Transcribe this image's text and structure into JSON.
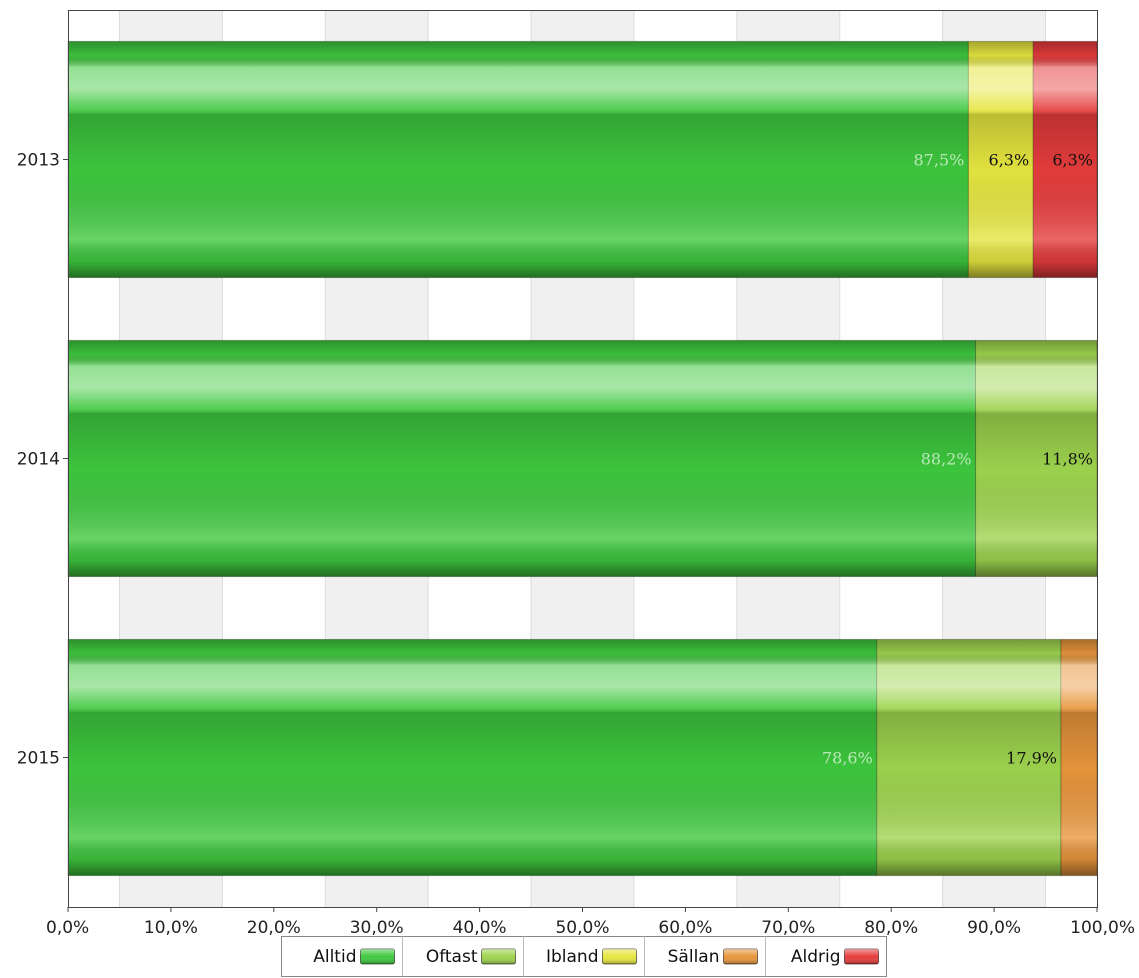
{
  "chart_data": {
    "type": "bar",
    "orientation": "horizontal",
    "stacked": true,
    "categories": [
      "2013",
      "2014",
      "2015"
    ],
    "series": [
      {
        "name": "Alltid",
        "values": [
          87.5,
          88.2,
          78.6
        ],
        "labels": [
          "87,5%",
          "88,2%",
          "78,6%"
        ],
        "color": "#3ec83e"
      },
      {
        "name": "Oftast",
        "values": [
          0,
          11.8,
          17.9
        ],
        "labels": [
          "",
          "11,8%",
          "17,9%"
        ],
        "color": "#9ed44e"
      },
      {
        "name": "Ibland",
        "values": [
          6.3,
          0,
          0
        ],
        "labels": [
          "6,3%",
          "",
          ""
        ],
        "color": "#e6e640"
      },
      {
        "name": "Sällan",
        "values": [
          0,
          0,
          3.6
        ],
        "labels": [
          "",
          "",
          ""
        ],
        "color": "#e8963c"
      },
      {
        "name": "Aldrig",
        "values": [
          6.3,
          0,
          0
        ],
        "labels": [
          "6,3%",
          "",
          ""
        ],
        "color": "#e63c3c"
      }
    ],
    "xlim": [
      0,
      100
    ],
    "x_ticks": [
      "0,0%",
      "10,0%",
      "20,0%",
      "30,0%",
      "40,0%",
      "50,0%",
      "60,0%",
      "70,0%",
      "80,0%",
      "90,0%",
      "100,0%"
    ],
    "grid": "alternating-bands",
    "legend": "bottom"
  }
}
